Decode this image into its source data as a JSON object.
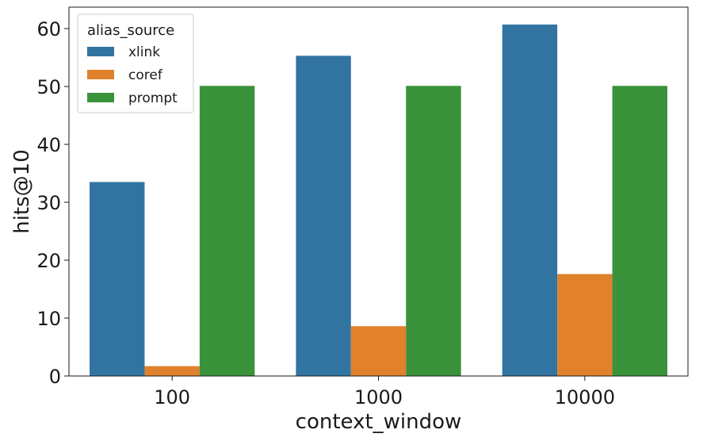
{
  "chart_data": {
    "type": "bar",
    "title": "",
    "xlabel": "context_window",
    "ylabel": "hits@10",
    "categories": [
      "100",
      "1000",
      "10000"
    ],
    "series": [
      {
        "name": "xlink",
        "values": [
          33.5,
          55.3,
          60.7
        ]
      },
      {
        "name": "coref",
        "values": [
          1.7,
          8.6,
          17.6
        ]
      },
      {
        "name": "prompt",
        "values": [
          50.1,
          50.1,
          50.1
        ]
      }
    ],
    "ylim": [
      0,
      63.7
    ],
    "yticks": [
      0,
      10,
      20,
      30,
      40,
      50,
      60
    ],
    "grid": false,
    "legend": {
      "title": "alias_source",
      "placement": "top-left"
    },
    "colors": {
      "xlink": "#3274a1",
      "coref": "#e1812c",
      "prompt": "#3a923a"
    }
  }
}
